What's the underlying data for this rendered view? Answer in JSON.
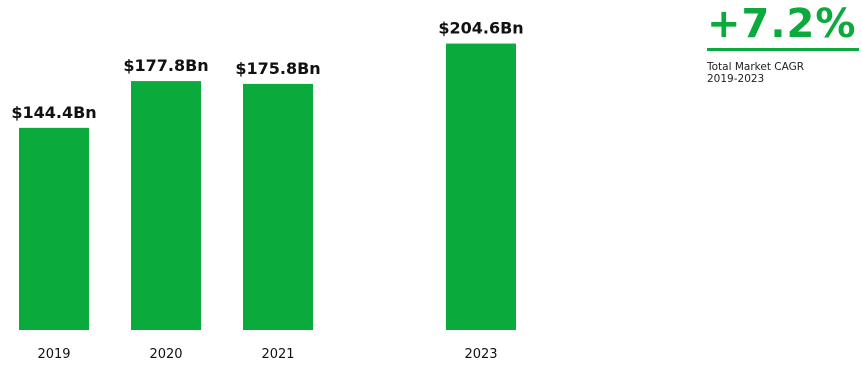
{
  "chart_data": {
    "type": "bar",
    "categories": [
      "2019",
      "2020",
      "2021",
      "2023"
    ],
    "values": [
      144.4,
      177.8,
      175.8,
      204.6
    ],
    "value_labels": [
      "$144.4Bn",
      "$177.8Bn",
      "$175.8Bn",
      "$204.6Bn"
    ],
    "title": "",
    "xlabel": "",
    "ylabel": "",
    "ylim": [
      0,
      210
    ],
    "grid": false,
    "bar_color": "#0aaa3c"
  },
  "highlight": {
    "value": "+7.2%",
    "caption_line1": "Total Market CAGR",
    "caption_line2": "2019-2023",
    "color": "#0aaa3c"
  }
}
